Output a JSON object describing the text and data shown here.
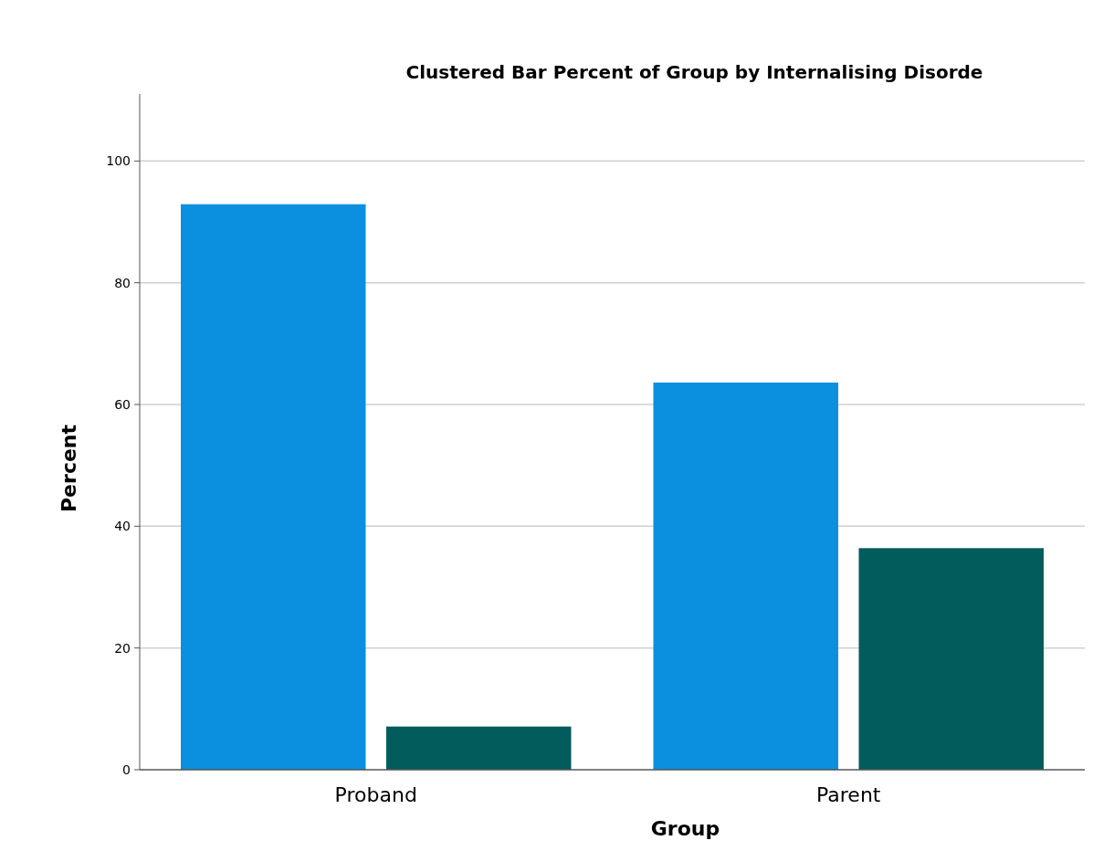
{
  "chart_data": {
    "type": "bar",
    "title": "Clustered Bar Percent of Group by Internalising Disorde",
    "xlabel": "Group",
    "ylabel": "Percent",
    "categories": [
      "Proband",
      "Parent"
    ],
    "series": [
      {
        "color": "#0b90e0",
        "values": [
          92.9,
          63.6
        ]
      },
      {
        "color": "#035c5c",
        "values": [
          7.1,
          36.4
        ]
      }
    ],
    "ylim": [
      0,
      111
    ],
    "yticks": [
      0,
      20,
      40,
      60,
      80,
      100
    ],
    "grid": "y"
  }
}
